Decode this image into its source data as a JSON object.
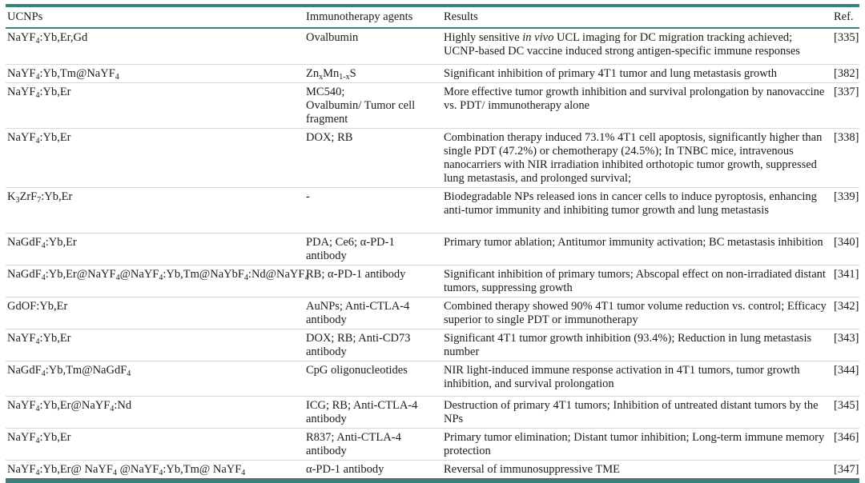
{
  "table": {
    "accent_color": "#35827C",
    "divider_color": "#D8D8D8",
    "columns": [
      "UCNPs",
      "Immunotherapy agents",
      "Results",
      "Ref."
    ],
    "rows": [
      {
        "ucnp": "NaYF~4~:Yb,Er,Gd",
        "agents": "Ovalbumin",
        "results": "Highly sensitive *in vivo* UCL imaging for DC migration tracking achieved; UCNP-based DC vaccine induced strong antigen-specific immune responses",
        "ref": "[335]"
      },
      {
        "ucnp": "NaYF~4~:Yb,Tm@NaYF~4~",
        "agents": "Zn~x~Mn~1-x~S",
        "results": "Significant inhibition of primary 4T1 tumor and lung metastasis growth",
        "ref": "[382]"
      },
      {
        "ucnp": "NaYF~4~:Yb,Er",
        "agents": "MC540;\nOvalbumin/ Tumor cell fragment",
        "results": "More effective tumor growth inhibition and survival prolongation by nanovaccine vs. PDT/ immunotherapy alone",
        "ref": "[337]"
      },
      {
        "ucnp": "NaYF~4~:Yb,Er",
        "agents": "DOX; RB",
        "results": "Combination therapy induced 73.1% 4T1 cell apoptosis, significantly higher than single PDT (47.2%) or chemotherapy (24.5%); In TNBC mice, intravenous nanocarriers with NIR irradiation inhibited orthotopic tumor growth, suppressed lung metastasis, and prolonged survival;",
        "ref": "[338]"
      },
      {
        "ucnp": "K~3~ZrF~7~:Yb,Er",
        "agents": "-",
        "results": "Biodegradable NPs released ions in cancer cells to induce pyroptosis, enhancing anti-tumor immunity and inhibiting tumor growth and lung metastasis",
        "ref": "[339]"
      },
      {
        "ucnp": "NaGdF~4~:Yb,Er",
        "agents": "PDA; Ce6; α-PD-1 antibody",
        "results": "Primary tumor ablation; Antitumor immunity activation; BC metastasis inhibition",
        "ref": "[340]"
      },
      {
        "ucnp": "NaGdF~4~:Yb,Er@NaYF~4~@NaYF~4~:Yb,Tm@NaYbF~4~:Nd@NaYF~4~",
        "agents": "RB; α-PD-1 antibody",
        "results": "Significant inhibition of primary tumors; Abscopal effect on non-irradiated distant tumors, suppressing growth",
        "ref": "[341]"
      },
      {
        "ucnp": "GdOF:Yb,Er",
        "agents": "AuNPs; Anti-CTLA-4 antibody",
        "results": "Combined therapy showed 90% 4T1 tumor volume reduction vs. control; Efficacy superior to single PDT or immunotherapy",
        "ref": "[342]"
      },
      {
        "ucnp": "NaYF~4~:Yb,Er",
        "agents": "DOX; RB; Anti-CD73 antibody",
        "results": "Significant 4T1 tumor growth inhibition (93.4%); Reduction in lung metastasis number",
        "ref": "[343]"
      },
      {
        "ucnp": "NaGdF~4~:Yb,Tm@NaGdF~4~",
        "agents": "CpG oligonucleotides",
        "results": "NIR light-induced immune response activation in 4T1 tumors, tumor growth inhibition, and survival prolongation",
        "ref": "[344]"
      },
      {
        "ucnp": "NaYF~4~:Yb,Er@NaYF~4~:Nd",
        "agents": "ICG; RB; Anti-CTLA-4 antibody",
        "results": "Destruction of primary 4T1 tumors; Inhibition of untreated distant tumors by the NPs",
        "ref": "[345]"
      },
      {
        "ucnp": "NaYF~4~:Yb,Er",
        "agents": "R837; Anti-CTLA-4 antibody",
        "results": "Primary tumor elimination; Distant tumor inhibition; Long-term immune memory protection",
        "ref": "[346]"
      },
      {
        "ucnp": "NaYF~4~:Yb,Er@ NaYF~4~ @NaYF~4~:Yb,Tm@ NaYF~4~",
        "agents": "α-PD-1 antibody",
        "results": "Reversal of immunosuppressive TME",
        "ref": "[347]"
      }
    ]
  }
}
